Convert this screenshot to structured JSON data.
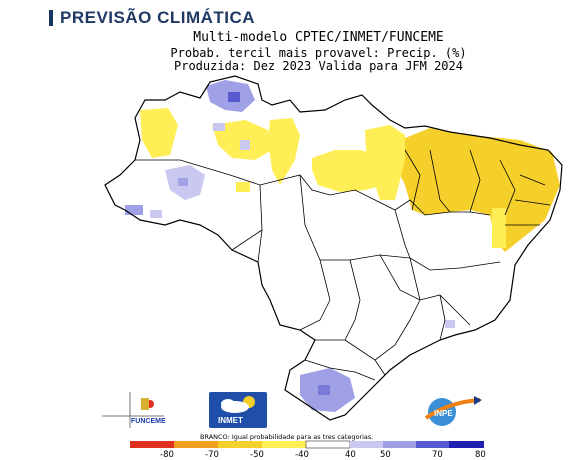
{
  "title": "PREVISÃO CLIMÁTICA",
  "header": {
    "line1": "Multi-modelo CPTEC/INMET/FUNCEME",
    "line2": "Probab. tercil mais provavel: Precip. (%)",
    "line3": "Produzida: Dez 2023  Valida para JFM 2024"
  },
  "logos": {
    "funceme": "FUNCEME",
    "inmet": "INMET",
    "inpe": "INPE"
  },
  "legend": {
    "note": "BRANCO: Igual probabilidade para as tres categorias.",
    "ticks": [
      "-80",
      "-70",
      "-50",
      "-40",
      "40",
      "50",
      "70",
      "80"
    ]
  },
  "colors": {
    "dry_strong": "#e03020",
    "dry_mid": "#f0a020",
    "dry_light": "#f6d02a",
    "dry_pale": "#ffee55",
    "wet_pale": "#c8c8f0",
    "wet_light": "#9fa0e6",
    "wet_mid": "#5a5ad0",
    "wet_strong": "#2020b0",
    "accent": "#1f3864"
  }
}
